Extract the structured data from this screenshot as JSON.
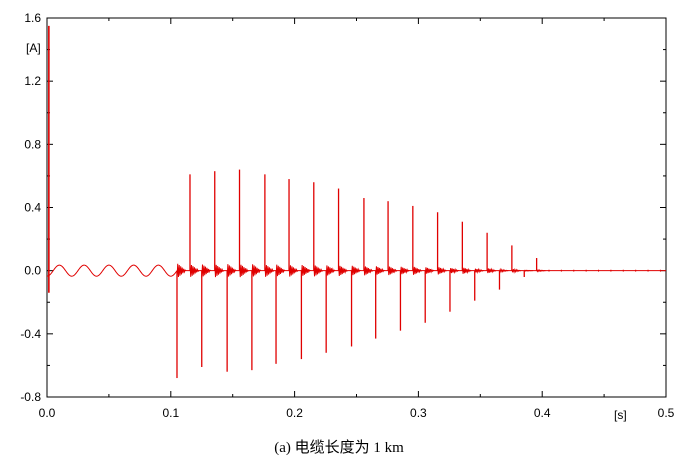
{
  "chart_data": {
    "type": "line",
    "title": "",
    "xlabel": "[s]",
    "ylabel": "[A]",
    "xlim": [
      0,
      0.5
    ],
    "ylim": [
      -0.8,
      1.6
    ],
    "xticks": [
      "0.0",
      "0.1",
      "0.2",
      "0.3",
      "0.4",
      "0.5"
    ],
    "yticks": [
      "-0.8",
      "-0.4",
      "0.0",
      "0.4",
      "0.8",
      "1.2",
      "1.6"
    ],
    "grid": false,
    "line_color": "#e00000",
    "pre_fault": {
      "t_end": 0.105,
      "amplitude": 0.035,
      "frequency_hz": 50
    },
    "initial_spike": {
      "t": 0.0015,
      "peak": 1.55,
      "trough": -0.14
    },
    "pulses": [
      {
        "t_neg": 0.105,
        "neg": -0.68,
        "t_pos": 0.1155,
        "pos": 0.61
      },
      {
        "t_neg": 0.125,
        "neg": -0.61,
        "t_pos": 0.1355,
        "pos": 0.63
      },
      {
        "t_neg": 0.1455,
        "neg": -0.64,
        "t_pos": 0.1555,
        "pos": 0.64
      },
      {
        "t_neg": 0.1655,
        "neg": -0.63,
        "t_pos": 0.176,
        "pos": 0.61
      },
      {
        "t_neg": 0.185,
        "neg": -0.59,
        "t_pos": 0.1955,
        "pos": 0.58
      },
      {
        "t_neg": 0.2055,
        "neg": -0.56,
        "t_pos": 0.2155,
        "pos": 0.56
      },
      {
        "t_neg": 0.2255,
        "neg": -0.52,
        "t_pos": 0.2355,
        "pos": 0.52
      },
      {
        "t_neg": 0.246,
        "neg": -0.48,
        "t_pos": 0.256,
        "pos": 0.46
      },
      {
        "t_neg": 0.2655,
        "neg": -0.43,
        "t_pos": 0.2755,
        "pos": 0.44
      },
      {
        "t_neg": 0.2855,
        "neg": -0.38,
        "t_pos": 0.2955,
        "pos": 0.41
      },
      {
        "t_neg": 0.3055,
        "neg": -0.33,
        "t_pos": 0.3155,
        "pos": 0.37
      },
      {
        "t_neg": 0.3255,
        "neg": -0.26,
        "t_pos": 0.3355,
        "pos": 0.31
      },
      {
        "t_neg": 0.3455,
        "neg": -0.19,
        "t_pos": 0.3555,
        "pos": 0.24
      },
      {
        "t_neg": 0.3655,
        "neg": -0.12,
        "t_pos": 0.3755,
        "pos": 0.16
      },
      {
        "t_neg": 0.3855,
        "neg": -0.04,
        "t_pos": 0.3955,
        "pos": 0.08
      }
    ],
    "caption": "(a)  电缆长度为 1 km"
  }
}
